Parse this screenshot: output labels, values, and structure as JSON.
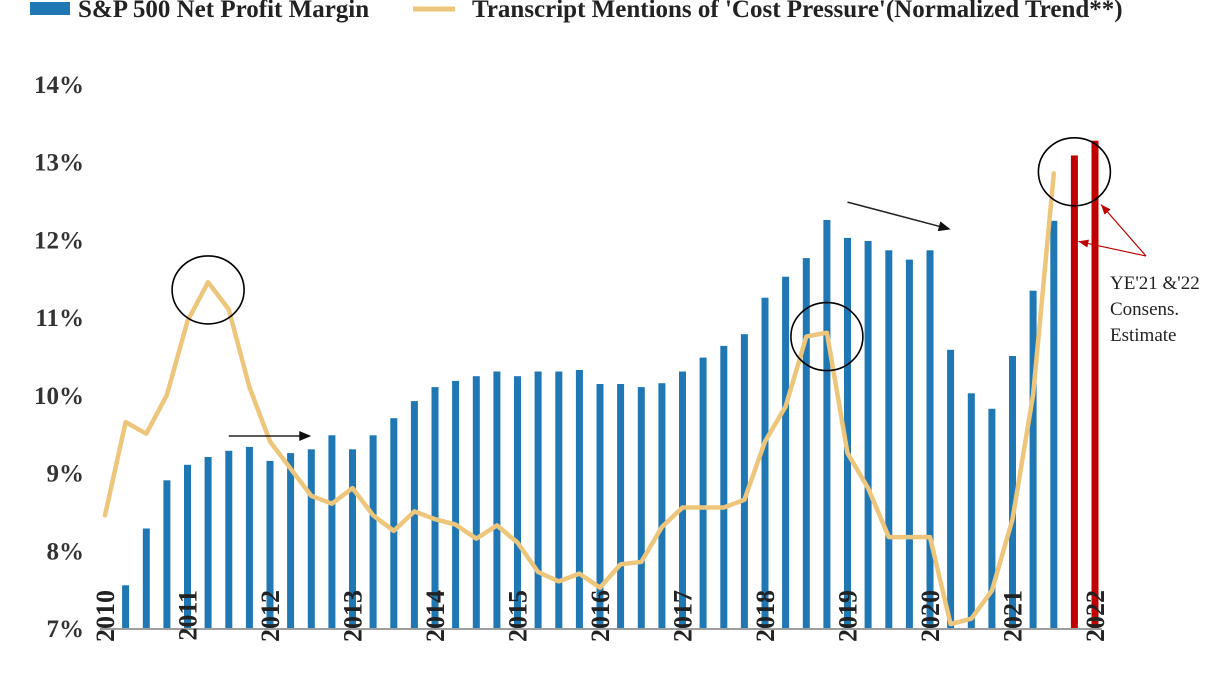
{
  "chart_data": {
    "type": "bar",
    "title": "",
    "xlabel": "",
    "ylabel": "",
    "ylim": [
      7,
      14
    ],
    "ytick_labels": [
      "7%",
      "8%",
      "9%",
      "10%",
      "11%",
      "12%",
      "13%",
      "14%"
    ],
    "xtick_labels": [
      "2010",
      "2011",
      "2012",
      "2013",
      "2014",
      "2015",
      "2016",
      "2017",
      "2018",
      "2019",
      "2020",
      "2021",
      "2022"
    ],
    "grid": false,
    "legend_position": "top",
    "colors": {
      "bar": "#1F78B4",
      "estimate_bar": "#C00000",
      "line": "#EDC67B",
      "circle": "#000000",
      "annotation_arrow": "#C00000"
    },
    "series": [
      {
        "name": "S&P 500 Net Profit Margin",
        "type": "bar",
        "x": [
          2010.0,
          2010.25,
          2010.5,
          2010.75,
          2011.0,
          2011.25,
          2011.5,
          2011.75,
          2012.0,
          2012.25,
          2012.5,
          2012.75,
          2013.0,
          2013.25,
          2013.5,
          2013.75,
          2014.0,
          2014.25,
          2014.5,
          2014.75,
          2015.0,
          2015.25,
          2015.5,
          2015.75,
          2016.0,
          2016.25,
          2016.5,
          2016.75,
          2017.0,
          2017.25,
          2017.5,
          2017.75,
          2018.0,
          2018.25,
          2018.5,
          2018.75,
          2019.0,
          2019.25,
          2019.5,
          2019.75,
          2020.0,
          2020.25,
          2020.5,
          2020.75,
          2021.0,
          2021.25,
          2021.5
        ],
        "values": [
          7.0,
          7.55,
          8.28,
          8.9,
          9.1,
          9.2,
          9.28,
          9.33,
          9.15,
          9.25,
          9.3,
          9.48,
          9.3,
          9.48,
          9.7,
          9.92,
          10.1,
          10.18,
          10.24,
          10.3,
          10.24,
          10.3,
          10.3,
          10.32,
          10.14,
          10.14,
          10.1,
          10.15,
          10.3,
          10.48,
          10.63,
          10.78,
          11.25,
          11.52,
          11.76,
          12.25,
          12.02,
          11.98,
          11.86,
          11.74,
          11.86,
          10.58,
          10.02,
          9.82,
          10.5,
          11.34,
          12.24
        ]
      },
      {
        "name": "",
        "type": "bar",
        "x": [
          2021.75,
          2022.0
        ],
        "values": [
          13.08,
          13.27
        ]
      },
      {
        "name": "Transcript Mentions of 'Cost Pressure'(Normalized Trend**)",
        "type": "line",
        "x": [
          2010.0,
          2010.25,
          2010.5,
          2010.75,
          2011.0,
          2011.25,
          2011.5,
          2011.75,
          2012.0,
          2012.25,
          2012.5,
          2012.75,
          2013.0,
          2013.25,
          2013.5,
          2013.75,
          2014.0,
          2014.25,
          2014.5,
          2014.75,
          2015.0,
          2015.25,
          2015.5,
          2015.75,
          2016.0,
          2016.25,
          2016.5,
          2016.75,
          2017.0,
          2017.25,
          2017.5,
          2017.75,
          2018.0,
          2018.25,
          2018.5,
          2018.75,
          2019.0,
          2019.25,
          2019.5,
          2019.75,
          2020.0,
          2020.25,
          2020.5,
          2020.75,
          2021.0,
          2021.25,
          2021.5
        ],
        "values": [
          8.45,
          9.65,
          9.5,
          10.0,
          10.95,
          11.45,
          11.1,
          10.1,
          9.4,
          9.05,
          8.7,
          8.6,
          8.8,
          8.45,
          8.25,
          8.5,
          8.4,
          8.33,
          8.15,
          8.32,
          8.1,
          7.72,
          7.6,
          7.7,
          7.52,
          7.82,
          7.85,
          8.3,
          8.55,
          8.55,
          8.55,
          8.65,
          9.4,
          9.85,
          10.75,
          10.8,
          9.25,
          8.8,
          8.17,
          8.17,
          8.17,
          7.05,
          7.12,
          7.48,
          8.4,
          10.0,
          12.85
        ]
      }
    ],
    "circles": [
      {
        "x": 2011.25,
        "y": 11.35
      },
      {
        "x": 2018.75,
        "y": 10.75
      },
      {
        "x": 2021.75,
        "y": 12.87
      }
    ],
    "trend_arrows": [
      {
        "from": [
          2011.5,
          9.47
        ],
        "to": [
          2012.5,
          9.47
        ]
      },
      {
        "from": [
          2019.0,
          12.48
        ],
        "to": [
          2020.25,
          12.13
        ]
      }
    ],
    "annotation": {
      "lines": [
        "YE'21 &'22",
        "Consens.",
        "Estimate"
      ]
    }
  }
}
